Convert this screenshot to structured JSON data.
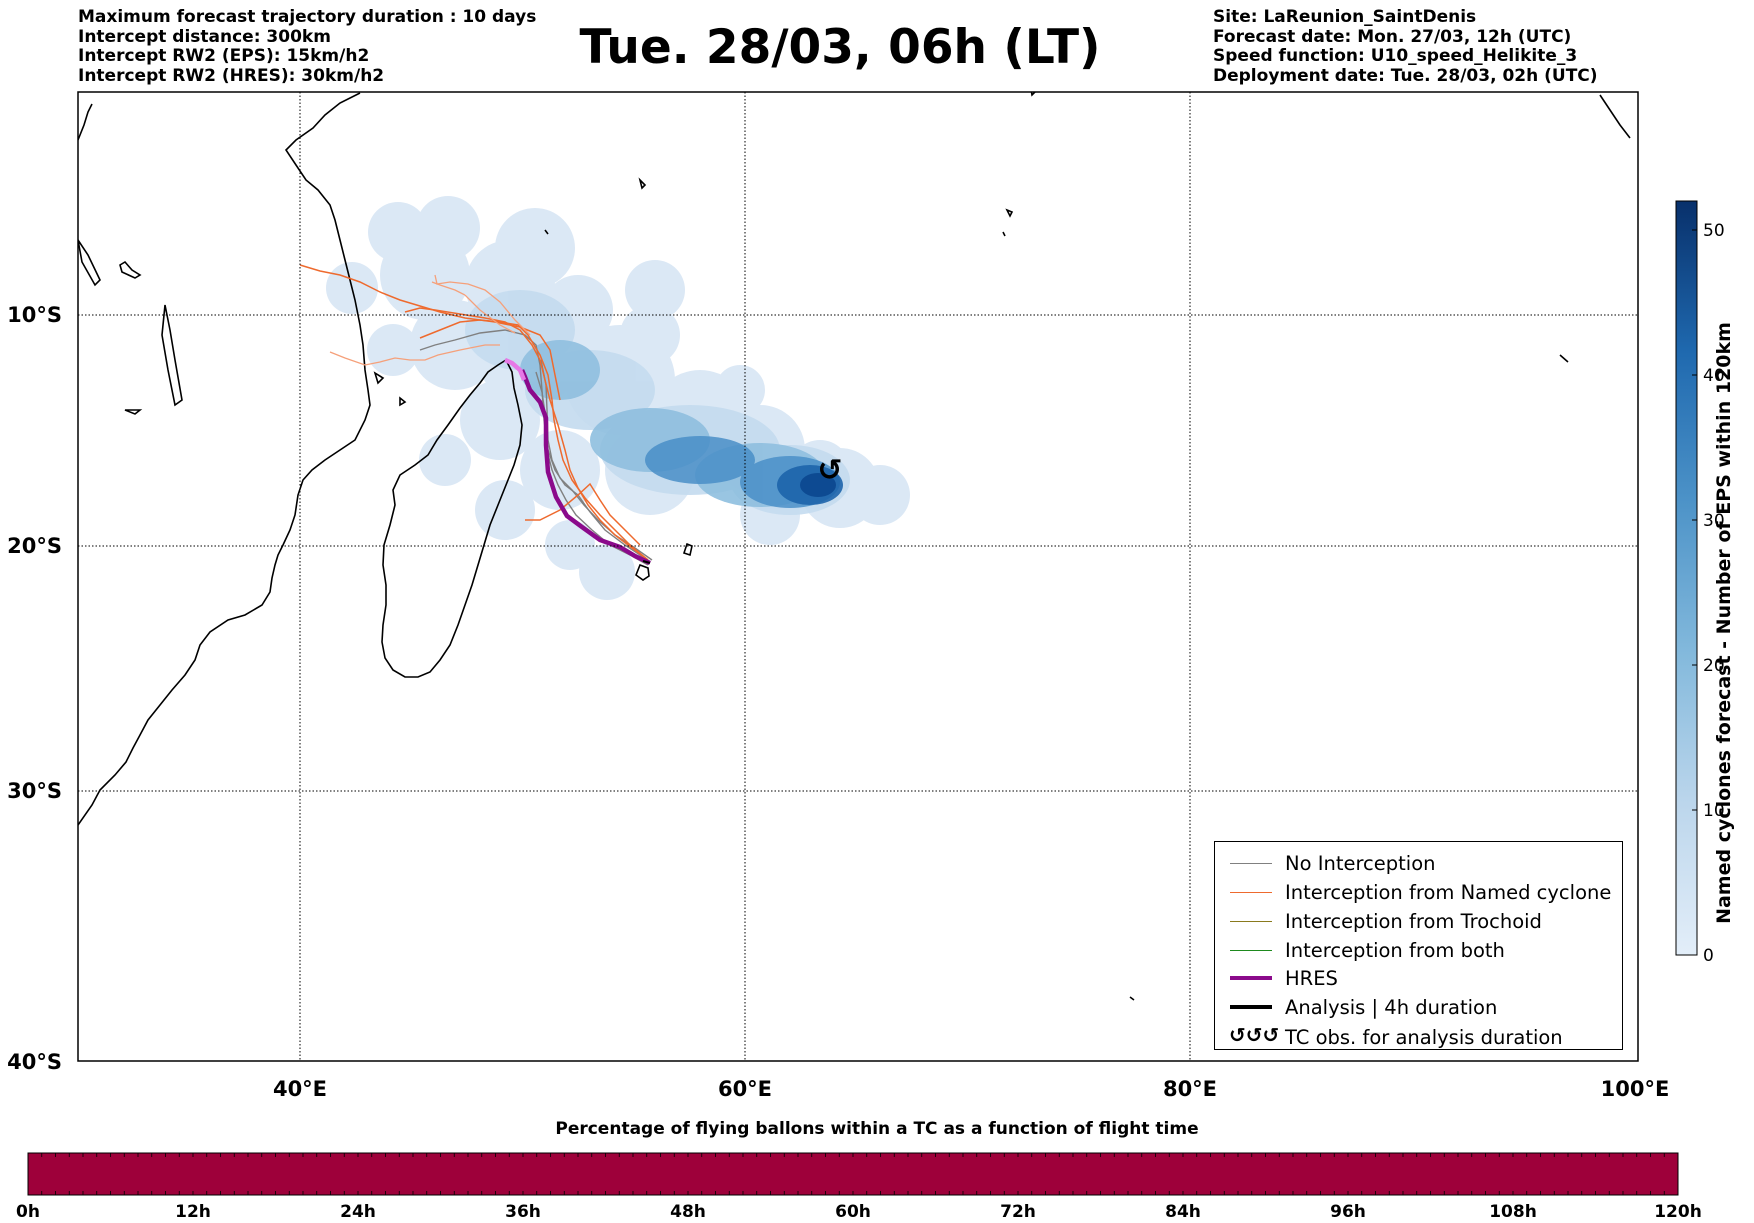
{
  "header_left": [
    "Maximum forecast trajectory duration : 10 days",
    "Intercept distance: 300km",
    "Intercept RW2 (EPS):  15km/h2",
    "Intercept RW2 (HRES): 30km/h2"
  ],
  "header_right": [
    "Site: LaReunion_SaintDenis",
    "Forecast date: Mon. 27/03, 12h (UTC)",
    "Speed function: U10_speed_Helikite_3",
    "Deployment date: Tue. 28/03, 02h (UTC)"
  ],
  "title": "Tue. 28/03, 06h (LT)",
  "map": {
    "lon_ticks": [
      "40°E",
      "60°E",
      "80°E",
      "100°E"
    ],
    "lat_ticks": [
      "10°S",
      "20°S",
      "30°S",
      "40°S"
    ],
    "lon_values": [
      40,
      60,
      80,
      100
    ],
    "lat_values": [
      -10,
      -20,
      -30,
      -40
    ],
    "extent": {
      "lon_min": 30,
      "lon_max": 100,
      "lat_min": -40,
      "lat_max": -0.1
    },
    "grid": "dotted"
  },
  "legend": [
    {
      "label": "No Interception",
      "color": "#808080",
      "style": "thin"
    },
    {
      "label": "Interception from Named cyclone",
      "color": "#ee6a2e",
      "style": "thin"
    },
    {
      "label": "Interception from Trochoid",
      "color": "#8a7a1e",
      "style": "thin"
    },
    {
      "label": "Interception from both",
      "color": "#1e8a1e",
      "style": "thin"
    },
    {
      "label": "HRES",
      "color": "#8b0a8b",
      "style": "thick"
    },
    {
      "label": "Analysis | 4h duration",
      "color": "#000000",
      "style": "thick"
    },
    {
      "label": "TC obs. for analysis duration",
      "color": "#000000",
      "style": "glyph",
      "glyph": "↺↺↺"
    }
  ],
  "colorbar_right": {
    "label": "Named cyclones forecast - Number of EPS within 120km",
    "ticks": [
      "0",
      "10",
      "20",
      "30",
      "40",
      "50"
    ],
    "tick_values": [
      0,
      10,
      20,
      30,
      40,
      50
    ],
    "max": 52,
    "color_low": "#e3eef9",
    "color_high": "#08306b"
  },
  "bottom_bar": {
    "title": "Percentage of flying ballons within a TC as a function of flight time",
    "ticks": [
      "0h",
      "12h",
      "24h",
      "36h",
      "48h",
      "60h",
      "72h",
      "84h",
      "96h",
      "108h",
      "120h"
    ],
    "fill_color": "#9e003a"
  },
  "cyclone_symbol": {
    "glyph": "↺",
    "lon": 63.8,
    "lat": -17.0
  }
}
